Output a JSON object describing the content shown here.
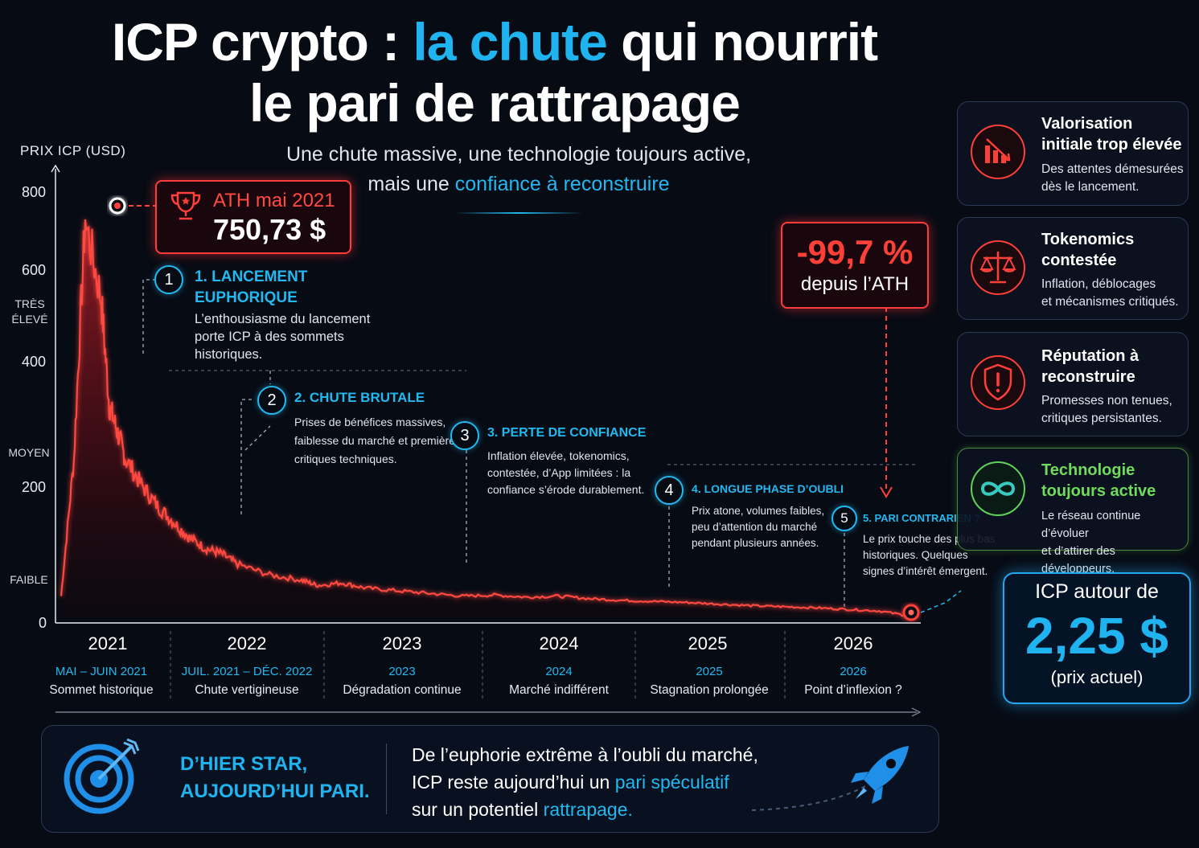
{
  "title": {
    "line1_a": "ICP crypto : ",
    "line1_hl": "la chute",
    "line1_b": " qui nourrit",
    "line2": "le pari de rattrapage"
  },
  "subtitle": {
    "line1": "Une chute massive, une technologie toujours active,",
    "line2_a": "mais une ",
    "line2_hl": "confiance à reconstruire"
  },
  "chart_data": {
    "type": "area",
    "ylabel": "PRIX ICP (USD)",
    "ylim": [
      0,
      800
    ],
    "y_ticks": [
      "800",
      "600",
      "400",
      "200",
      "0"
    ],
    "y_categories": [
      "TRÈS\nÉLEVÉ",
      "MOYEN",
      "FAIBLE"
    ],
    "x_ticks": [
      "2021",
      "2022",
      "2023",
      "2024",
      "2025",
      "2026"
    ],
    "x": [
      2021.0,
      2021.08,
      2021.15,
      2021.25,
      2021.3,
      2021.35,
      2021.4,
      2021.5,
      2021.6,
      2021.7,
      2021.8,
      2021.9,
      2022.0,
      2022.1,
      2022.3,
      2022.5,
      2022.6,
      2022.75,
      2022.9,
      2023.1,
      2023.3,
      2023.5,
      2023.7,
      2023.9,
      2024.1,
      2024.3,
      2024.5,
      2024.7,
      2024.9,
      2025.1,
      2025.3,
      2025.5,
      2025.7,
      2025.9,
      2026.1,
      2026.3
    ],
    "values": [
      40,
      300,
      750,
      600,
      400,
      350,
      300,
      250,
      210,
      180,
      150,
      130,
      120,
      100,
      80,
      70,
      60,
      65,
      55,
      50,
      45,
      40,
      42,
      38,
      40,
      35,
      32,
      30,
      28,
      25,
      22,
      20,
      18,
      15,
      12,
      2.25
    ],
    "series_color": "#ff4a40"
  },
  "ath": {
    "label": "ATH mai 2021",
    "value": "750,73 $"
  },
  "drop": {
    "value": "-99,7 %",
    "caption": "depuis l’ATH"
  },
  "phases": [
    {
      "num": "1",
      "title_l1": "1. LANCEMENT",
      "title_l2": "EUPHORIQUE",
      "desc_l1": "L’enthousiasme du lancement",
      "desc_l2": "porte ICP à des sommets",
      "desc_l3": "historiques."
    },
    {
      "num": "2",
      "title": "2. CHUTE BRUTALE",
      "desc_l1": "Prises de bénéfices massives,",
      "desc_l2": "faiblesse du marché et premières",
      "desc_l3": "critiques techniques."
    },
    {
      "num": "3",
      "title": "3. PERTE DE CONFIANCE",
      "desc_l1": "Inflation élevée, tokenomics,",
      "desc_l2": "contestée, d’App limitées : la",
      "desc_l3": "confiance s’érode durablement."
    },
    {
      "num": "4",
      "title": "4. LONGUE PHASE D’OUBLI",
      "desc_l1": "Prix atone, volumes faibles,",
      "desc_l2": "peu d’attention du marché",
      "desc_l3": "pendant plusieurs années."
    },
    {
      "num": "5",
      "title": "5. PARI CONTRARIEN ?",
      "desc_l1": "Le prix touche des plus bas",
      "desc_l2": "historiques. Quelques",
      "desc_l3": "signes d’intérêt émergent."
    }
  ],
  "periods": [
    {
      "cap": "MAI – JUIN 2021",
      "desc": "Sommet historique"
    },
    {
      "cap": "JUIL. 2021 – DÉC. 2022",
      "desc": "Chute vertigineuse"
    },
    {
      "cap": "2023",
      "desc": "Dégradation continue"
    },
    {
      "cap": "2024",
      "desc": "Marché indifférent"
    },
    {
      "cap": "2025",
      "desc": "Stagnation prolongée"
    },
    {
      "cap": "2026",
      "desc": "Point d’inflexion ?"
    }
  ],
  "cards": [
    {
      "icon": "falling-bars-icon",
      "title_l1": "Valorisation",
      "title_l2": "initiale trop élevée",
      "desc_l1": "Des attentes démesurées",
      "desc_l2": "dès le lancement."
    },
    {
      "icon": "scales-icon",
      "title_l1": "Tokenomics",
      "title_l2": "contestée",
      "desc_l1": "Inflation, déblocages",
      "desc_l2": "et mécanismes critiqués."
    },
    {
      "icon": "shield-alert-icon",
      "title_l1": "Réputation à",
      "title_l2": "reconstruire",
      "desc_l1": "Promesses non tenues,",
      "desc_l2": "critiques persistantes."
    },
    {
      "icon": "infinity-icon",
      "title_l1": "Technologie",
      "title_l2": "toujours active",
      "desc_l1": "Le réseau continue d’évoluer",
      "desc_l2": "et d’attirer des développeurs."
    }
  ],
  "price": {
    "label": "ICP autour de",
    "value": "2,25 $",
    "note": "(prix actuel)"
  },
  "bottom": {
    "tag_l1": "D’HIER STAR,",
    "tag_l2": "AUJOURD’HUI PARI.",
    "text_l1": "De l’euphorie extrême à l’oubli du marché,",
    "text_l2_a": "ICP reste aujourd’hui un ",
    "text_l2_hl": "pari spéculatif",
    "text_l3_a": "sur un potentiel ",
    "text_l3_hl": "rattrapage."
  },
  "colors": {
    "accent": "#1fb3f0",
    "danger": "#ff4038",
    "green": "#5fd35a",
    "background": "#070b14"
  }
}
